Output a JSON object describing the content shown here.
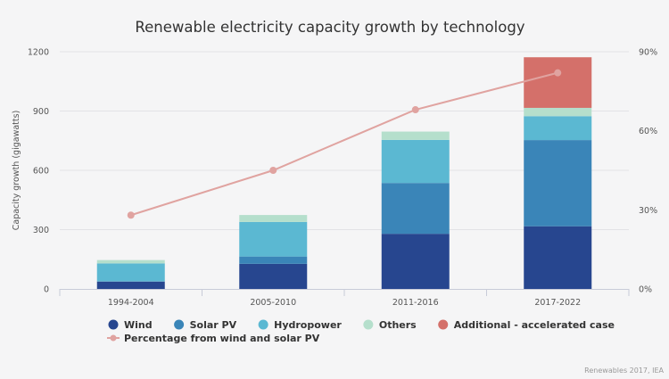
{
  "chart_data": {
    "type": "bar",
    "stacked": true,
    "title": "Renewable electricity capacity growth by technology",
    "ylabel": "Capacity growth (gigawatts)",
    "y2label": "",
    "ylim": [
      0,
      1200
    ],
    "yticks": [
      "0",
      "300",
      "600",
      "900",
      "1200"
    ],
    "y2lim": [
      0,
      90
    ],
    "y2ticks": [
      "0%",
      "30%",
      "60%",
      "90%"
    ],
    "categories": [
      "1994-2004",
      "2005-2010",
      "2011-2016",
      "2017-2022"
    ],
    "series": [
      {
        "name": "Wind",
        "color": "#27468f",
        "values": [
          37,
          127,
          279,
          317
        ]
      },
      {
        "name": "Solar PV",
        "color": "#3a85b8",
        "values": [
          2,
          37,
          257,
          436
        ]
      },
      {
        "name": "Hydropower",
        "color": "#5bb8d2",
        "values": [
          90,
          175,
          218,
          121
        ]
      },
      {
        "name": "Others",
        "color": "#b5dfcc",
        "values": [
          17,
          35,
          42,
          42
        ]
      },
      {
        "name": "Additional - accelerated case",
        "color": "#d4706a",
        "values": [
          0,
          0,
          0,
          256
        ]
      }
    ],
    "line": {
      "name": "Percentage from wind and solar PV",
      "color": "#e0a3a0",
      "axis": "right",
      "unit": "%",
      "values": [
        28,
        45,
        68,
        82
      ]
    },
    "grid": true,
    "legend_position": "bottom-left",
    "source": "Renewables 2017, IEA"
  }
}
